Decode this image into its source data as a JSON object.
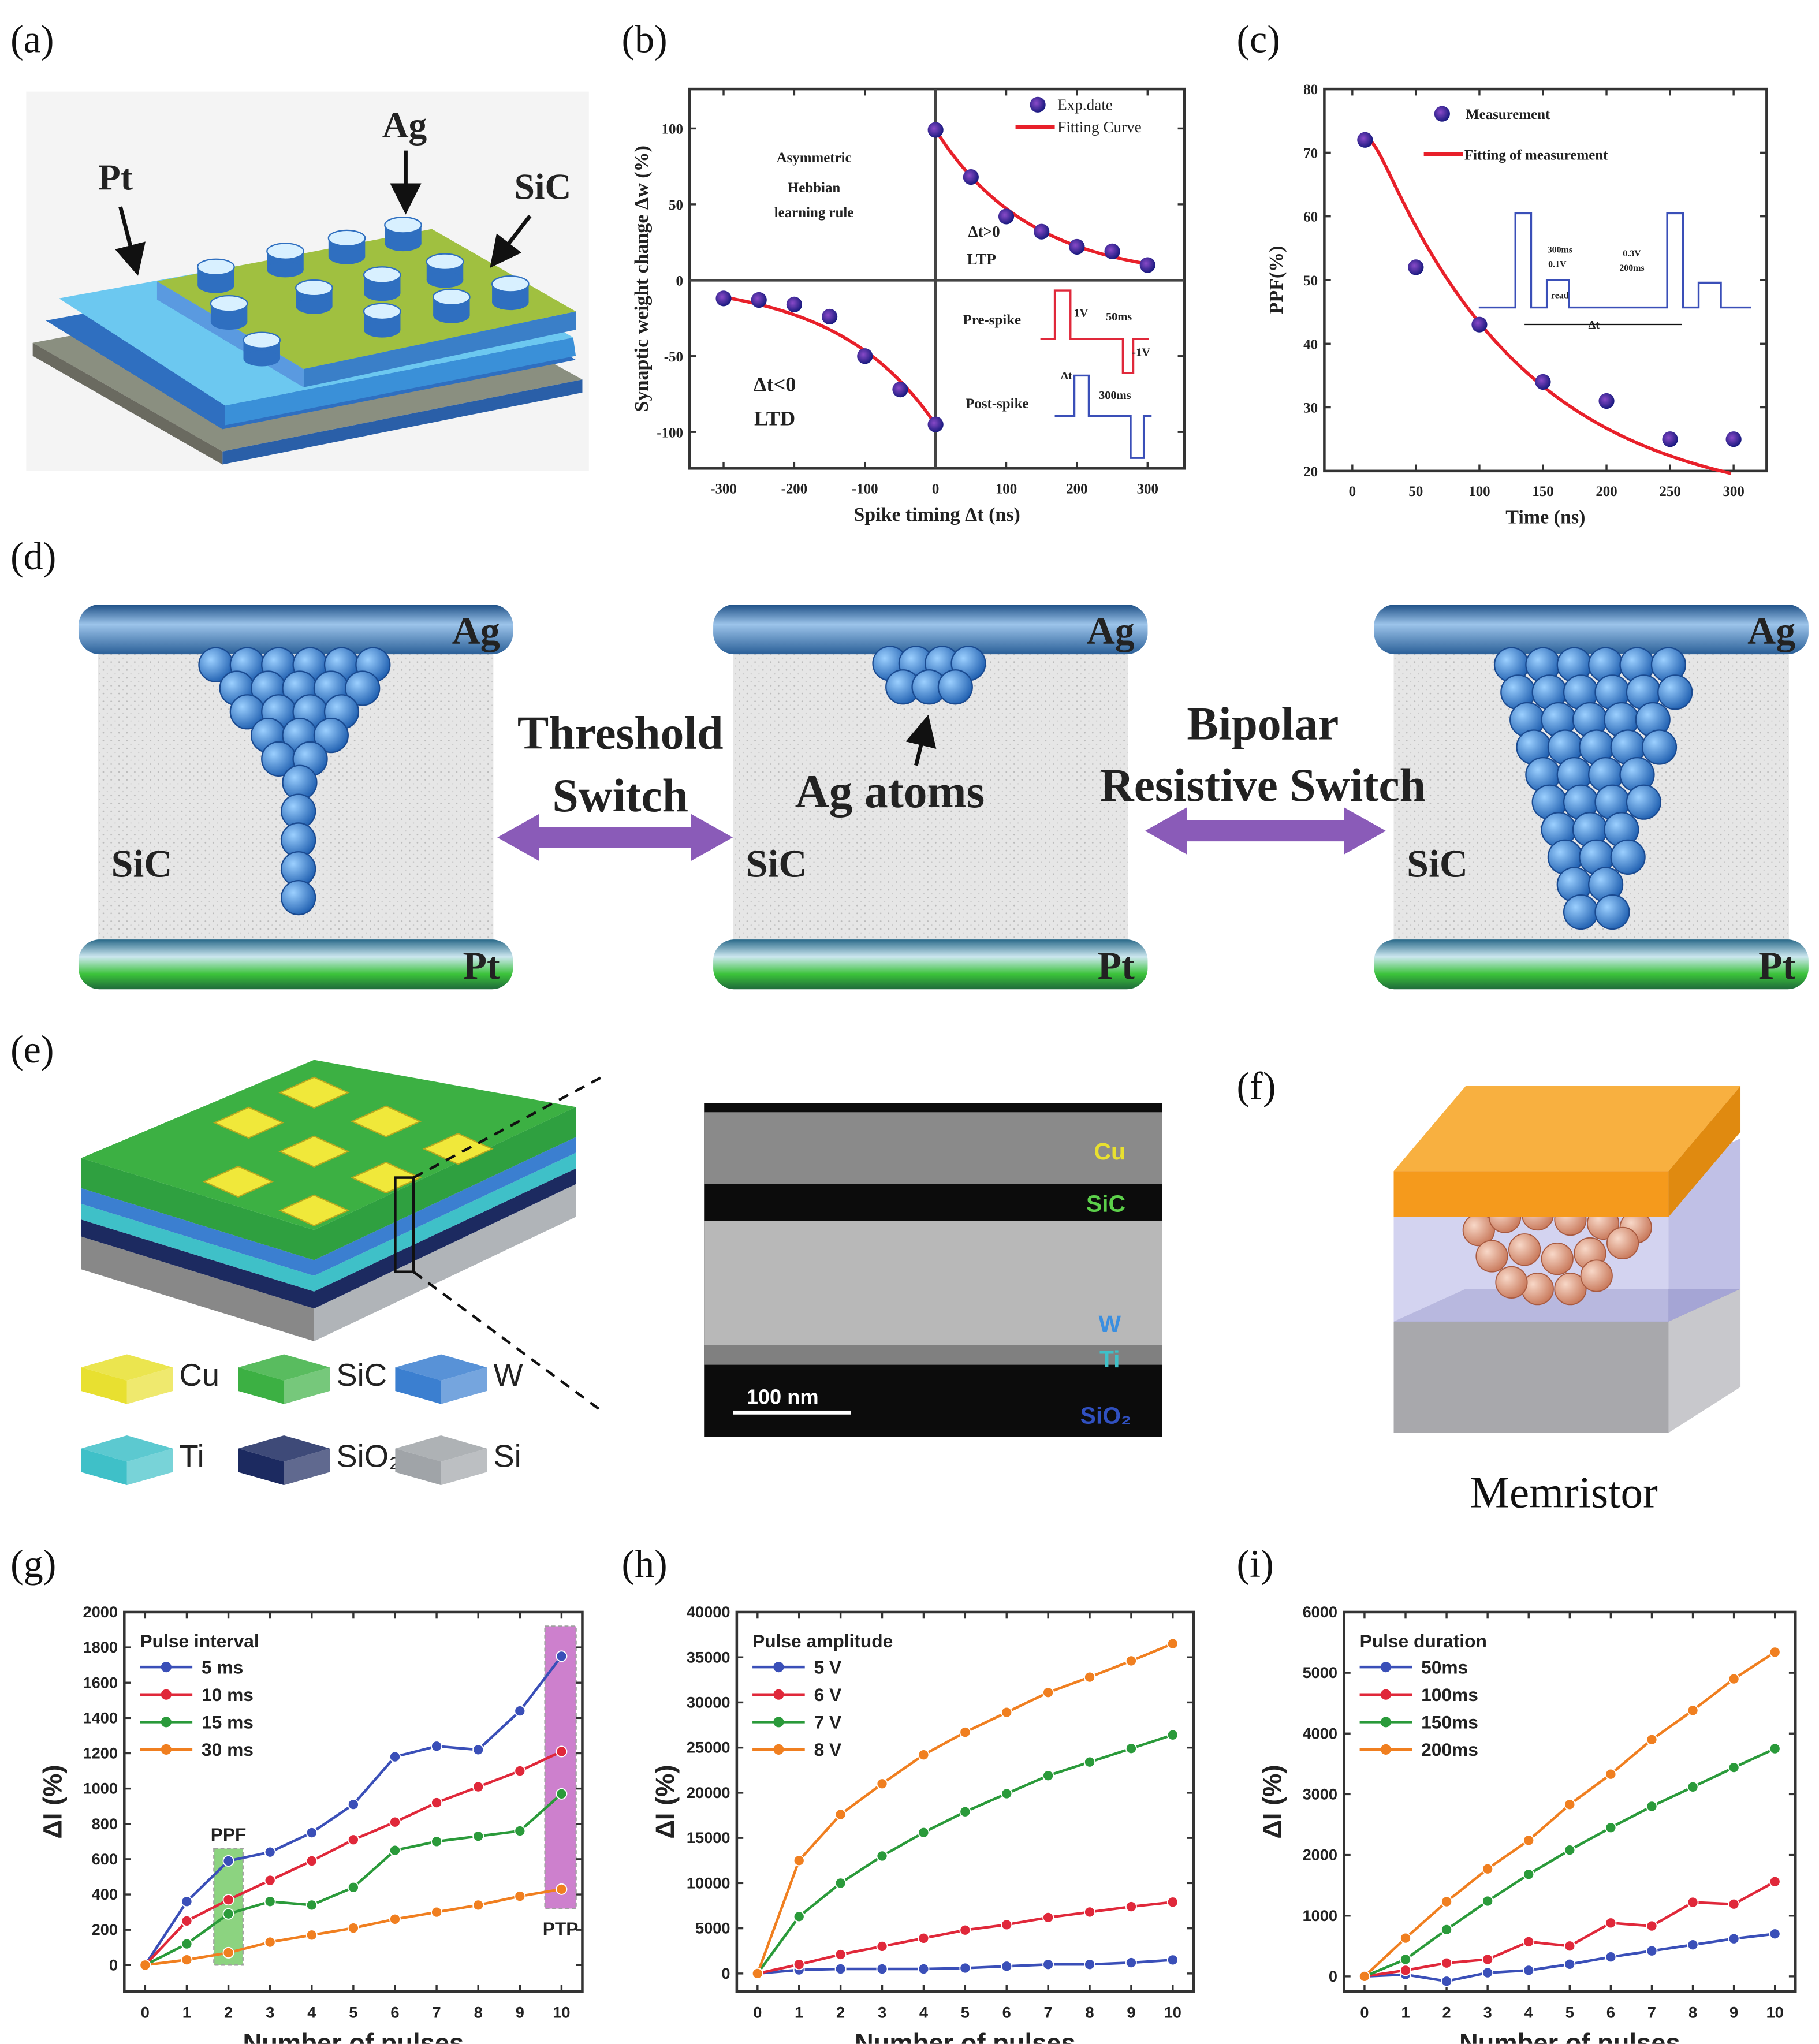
{
  "panels": {
    "a": {
      "label": "(a)",
      "pt": "Pt",
      "ag": "Ag",
      "sic": "SiC"
    },
    "b": {
      "label": "(b)"
    },
    "c": {
      "label": "(c)"
    },
    "d": {
      "label": "(d)",
      "top_electrode": "Ag",
      "bottom_electrode": "Pt",
      "medium": "SiC",
      "threshold_line1": "Threshold",
      "threshold_line2": "Switch",
      "bipolar_line1": "Bipolar",
      "bipolar_line2": "Resistive Switch",
      "atoms_label": "Ag atoms",
      "colors": {
        "atom": "#3f86d0",
        "arrow": "#8a5bb8",
        "top_bar": "#4a86c0",
        "bottom_bar": "#4fbf3a"
      }
    },
    "e": {
      "label": "(e)",
      "legend": [
        {
          "name": "Cu",
          "color": "#e8e030"
        },
        {
          "name": "SiC",
          "color": "#3cb043"
        },
        {
          "name": "W",
          "color": "#3b7fd0"
        },
        {
          "name": "Ti",
          "color": "#3fc0c8"
        },
        {
          "name": "SiO₂",
          "color": "#1c2a60"
        },
        {
          "name": "Si",
          "color": "#a0a4a8"
        }
      ],
      "tem": {
        "cu": "Cu",
        "sic": "SiC",
        "w": "W",
        "ti": "Ti",
        "sio2": "SiO₂",
        "scale_bar": "100 nm"
      }
    },
    "f": {
      "label": "(f)",
      "caption": "Memristor",
      "colors": {
        "top": "#f59a1c",
        "atoms": "#e8a88a"
      }
    },
    "g": {
      "label": "(g)"
    },
    "h": {
      "label": "(h)"
    },
    "i": {
      "label": "(i)"
    }
  },
  "chart_data": [
    {
      "id": "b",
      "type": "scatter",
      "xlabel": "Spike timing Δt (ns)",
      "ylabel": "Synaptic weight change Δw (%)",
      "xticks": [
        -300,
        -200,
        -100,
        0,
        100,
        200,
        300
      ],
      "yticks": [
        -100,
        -50,
        0,
        50,
        100
      ],
      "xlim": [
        -348,
        352
      ],
      "ylim": [
        -124,
        126
      ],
      "legend": [
        "Exp.date",
        "Fitting Curve"
      ],
      "legend_position": "top-right",
      "series": [
        {
          "name": "Exp.date",
          "color": "#2a2a9a",
          "x": [
            -300,
            -250,
            -200,
            -150,
            -100,
            -50,
            0,
            0,
            50,
            100,
            150,
            200,
            250,
            300
          ],
          "y": [
            -12,
            -13,
            -16,
            -24,
            -50,
            -72,
            -95,
            99,
            68,
            42,
            32,
            22,
            19,
            10
          ]
        }
      ],
      "fit_color": "#e8202a",
      "annotations": {
        "rule1": "Asymmetric",
        "rule2": "Hebbian",
        "rule3": "learning rule",
        "ltp_cond": "Δt>0",
        "ltp": "LTP",
        "ltd_cond": "Δt<0",
        "ltd": "LTD",
        "pre": "Pre-spike",
        "post": "Post-spike",
        "v1": "1V",
        "t50": "50ms",
        "vm1": "-1V",
        "dt": "Δt",
        "t300": "300ms"
      }
    },
    {
      "id": "c",
      "type": "scatter",
      "xlabel": "Time (ns)",
      "ylabel": "PPF(%)",
      "xticks": [
        0,
        50,
        100,
        150,
        200,
        250,
        300
      ],
      "yticks": [
        20,
        30,
        40,
        50,
        60,
        70,
        80
      ],
      "xlim": [
        -22,
        326
      ],
      "ylim": [
        20,
        80
      ],
      "legend": [
        "Measurement",
        "Fitting of measurement"
      ],
      "legend_position": "top",
      "series": [
        {
          "name": "Measurement",
          "color": "#2a2a9a",
          "x": [
            10,
            50,
            100,
            150,
            200,
            250,
            300
          ],
          "y": [
            72,
            52,
            43,
            34,
            31,
            25,
            25
          ]
        }
      ],
      "fit_color": "#e8202a",
      "annotations": {
        "t300": "300ms",
        "v01": "0.1V",
        "read": "read",
        "v03": "0.3V",
        "t200": "200ms",
        "dt": "Δt"
      }
    },
    {
      "id": "g",
      "type": "line",
      "xlabel": "Number of pulses",
      "ylabel": "ΔI (%)",
      "xticks": [
        0,
        1,
        2,
        3,
        4,
        5,
        6,
        7,
        8,
        9,
        10
      ],
      "yticks": [
        0,
        200,
        400,
        600,
        800,
        1000,
        1200,
        1400,
        1600,
        1800,
        2000
      ],
      "xlim": [
        -0.5,
        10.5
      ],
      "ylim": [
        -150,
        2000
      ],
      "legend_title": "Pulse interval",
      "legend_position": "top-left",
      "x": [
        0,
        1,
        2,
        3,
        4,
        5,
        6,
        7,
        8,
        9,
        10
      ],
      "series": [
        {
          "name": "5 ms",
          "color": "#3a4fb8",
          "values": [
            0,
            360,
            590,
            640,
            750,
            910,
            1180,
            1240,
            1220,
            1440,
            1750
          ]
        },
        {
          "name": "10 ms",
          "color": "#e0283a",
          "values": [
            0,
            250,
            370,
            480,
            590,
            710,
            810,
            920,
            1010,
            1100,
            1210
          ]
        },
        {
          "name": "15 ms",
          "color": "#2a9a3a",
          "values": [
            0,
            120,
            290,
            360,
            340,
            440,
            650,
            700,
            730,
            760,
            970
          ]
        },
        {
          "name": "30 ms",
          "color": "#f07f20",
          "values": [
            0,
            30,
            70,
            130,
            170,
            210,
            260,
            300,
            340,
            390,
            430
          ]
        }
      ],
      "highlights": [
        {
          "label": "PPF",
          "x": [
            1.65,
            2.35
          ],
          "y": [
            0,
            660
          ],
          "color": "#5cc04a"
        },
        {
          "label": "PTP",
          "x": [
            9.6,
            10.35
          ],
          "y": [
            320,
            1920
          ],
          "color": "#b84ab8"
        }
      ]
    },
    {
      "id": "h",
      "type": "line",
      "xlabel": "Number of pulses",
      "ylabel": "ΔI (%)",
      "xticks": [
        0,
        1,
        2,
        3,
        4,
        5,
        6,
        7,
        8,
        9,
        10
      ],
      "yticks": [
        0,
        5000,
        10000,
        15000,
        20000,
        25000,
        30000,
        35000,
        40000
      ],
      "xlim": [
        -0.5,
        10.5
      ],
      "ylim": [
        -2000,
        40000
      ],
      "legend_title": "Pulse amplitude",
      "legend_position": "top-left",
      "x": [
        0,
        1,
        2,
        3,
        4,
        5,
        6,
        7,
        8,
        9,
        10
      ],
      "series": [
        {
          "name": "5 V",
          "color": "#3a4fb8",
          "values": [
            0,
            400,
            500,
            500,
            500,
            600,
            800,
            1000,
            1000,
            1200,
            1500
          ]
        },
        {
          "name": "6 V",
          "color": "#e0283a",
          "values": [
            0,
            1000,
            2100,
            3000,
            3900,
            4800,
            5400,
            6200,
            6800,
            7400,
            7900
          ]
        },
        {
          "name": "7 V",
          "color": "#2a9a3a",
          "values": [
            0,
            6300,
            10000,
            13000,
            15600,
            17900,
            19900,
            21900,
            23400,
            24900,
            26400
          ]
        },
        {
          "name": "8 V",
          "color": "#f07f20",
          "values": [
            0,
            12500,
            17600,
            21000,
            24200,
            26700,
            28900,
            31100,
            32800,
            34600,
            36500
          ]
        }
      ]
    },
    {
      "id": "i",
      "type": "line",
      "xlabel": "Number of pulses",
      "ylabel": "ΔI (%)",
      "xticks": [
        0,
        1,
        2,
        3,
        4,
        5,
        6,
        7,
        8,
        9,
        10
      ],
      "yticks": [
        0,
        1000,
        2000,
        3000,
        4000,
        5000,
        6000
      ],
      "xlim": [
        -0.5,
        10.5
      ],
      "ylim": [
        -250,
        6000
      ],
      "legend_title": "Pulse duration",
      "legend_position": "top-left",
      "x": [
        0,
        1,
        2,
        3,
        4,
        5,
        6,
        7,
        8,
        9,
        10
      ],
      "series": [
        {
          "name": "50ms",
          "color": "#3a4fb8",
          "values": [
            0,
            30,
            -80,
            60,
            100,
            200,
            320,
            420,
            520,
            620,
            700
          ]
        },
        {
          "name": "100ms",
          "color": "#e0283a",
          "values": [
            0,
            100,
            220,
            280,
            570,
            500,
            880,
            830,
            1220,
            1190,
            1560
          ]
        },
        {
          "name": "150ms",
          "color": "#2a9a3a",
          "values": [
            0,
            280,
            770,
            1240,
            1680,
            2080,
            2450,
            2800,
            3120,
            3440,
            3750
          ]
        },
        {
          "name": "200ms",
          "color": "#f07f20",
          "values": [
            0,
            630,
            1230,
            1770,
            2240,
            2830,
            3330,
            3900,
            4380,
            4900,
            5340
          ]
        }
      ]
    }
  ]
}
